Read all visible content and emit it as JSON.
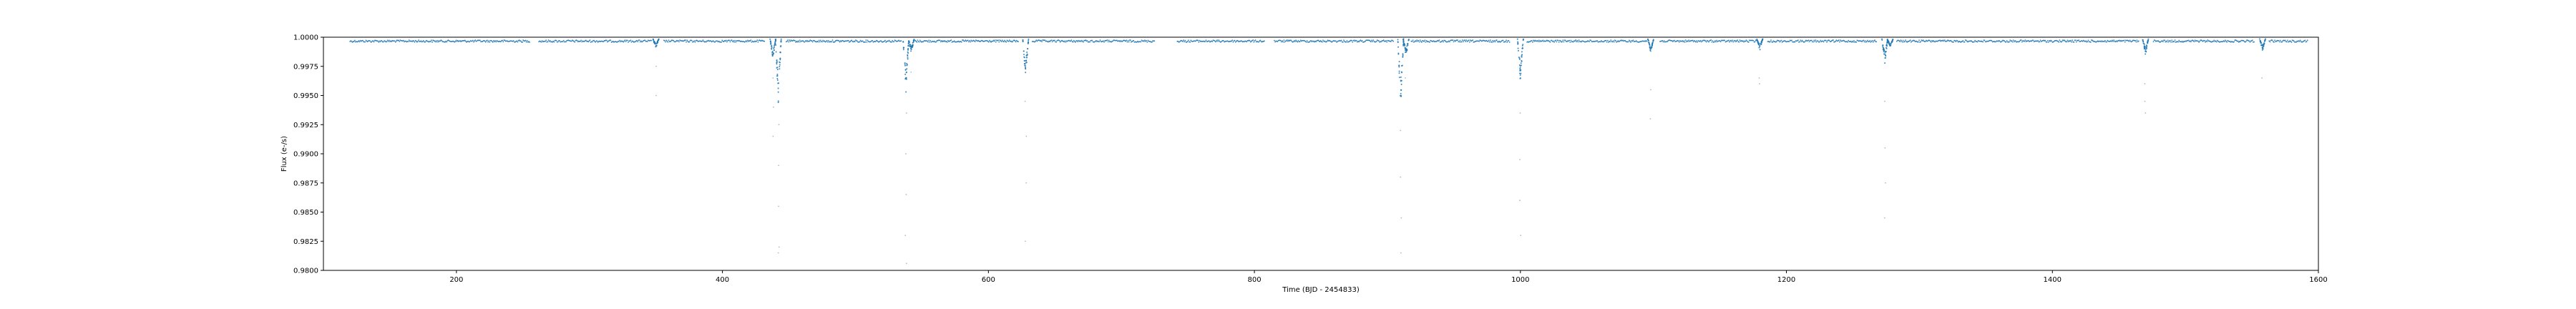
{
  "chart_data": {
    "type": "scatter",
    "title": "",
    "xlabel": "Time (BJD - 2454833)",
    "ylabel": "Flux (e-/s)",
    "xlim": [
      100,
      1600
    ],
    "ylim": [
      0.98,
      1.0
    ],
    "xticks": [
      200,
      400,
      600,
      800,
      1000,
      1200,
      1400,
      1600
    ],
    "xtick_labels": [
      "200",
      "400",
      "600",
      "800",
      "1000",
      "1200",
      "1400",
      "1600"
    ],
    "yticks": [
      0.98,
      0.9825,
      0.985,
      0.9875,
      0.99,
      0.9925,
      0.995,
      0.9975,
      1.0
    ],
    "ytick_labels": [
      "0.9800",
      "0.9825",
      "0.9850",
      "0.9875",
      "0.9900",
      "0.9925",
      "0.9950",
      "0.9975",
      "1.0000"
    ],
    "grid": false,
    "series": [
      {
        "color": "#1f77b4",
        "marker": "dot",
        "baseline_segments": [
          [
            120,
            255
          ],
          [
            262,
            347
          ],
          [
            356,
            432
          ],
          [
            448,
            535
          ],
          [
            545,
            623
          ],
          [
            633,
            725
          ],
          [
            742,
            808
          ],
          [
            815,
            905
          ],
          [
            918,
            992
          ],
          [
            1005,
            1095
          ],
          [
            1105,
            1178
          ],
          [
            1186,
            1268
          ],
          [
            1283,
            1465
          ],
          [
            1476,
            1552
          ],
          [
            1563,
            1592
          ]
        ],
        "transits": [
          {
            "t": 350,
            "depth": 0.0008,
            "outliers": [
              0.9975,
              0.995
            ]
          },
          {
            "t": 438,
            "depth": 0.0018,
            "outliers": [
              0.9965,
              0.994,
              0.9915
            ]
          },
          {
            "t": 442,
            "depth": 0.0055,
            "outliers": [
              0.9925,
              0.989,
              0.9855,
              0.982,
              0.9815
            ]
          },
          {
            "t": 538,
            "depth": 0.0048,
            "outliers": [
              0.9935,
              0.99,
              0.9865,
              0.983,
              0.9806
            ]
          },
          {
            "t": 542,
            "depth": 0.0012,
            "outliers": [
              0.997
            ]
          },
          {
            "t": 628,
            "depth": 0.0035,
            "outliers": [
              0.9945,
              0.9915,
              0.9875,
              0.9825
            ]
          },
          {
            "t": 910,
            "depth": 0.0058,
            "outliers": [
              0.992,
              0.988,
              0.9845,
              0.9815
            ]
          },
          {
            "t": 914,
            "depth": 0.0015,
            "outliers": [
              0.9965
            ]
          },
          {
            "t": 1000,
            "depth": 0.0038,
            "outliers": [
              0.9935,
              0.9895,
              0.986,
              0.983
            ]
          },
          {
            "t": 1098,
            "depth": 0.0012,
            "outliers": [
              0.9955,
              0.993
            ]
          },
          {
            "t": 1180,
            "depth": 0.001,
            "outliers": [
              0.9965,
              0.996
            ]
          },
          {
            "t": 1274,
            "depth": 0.0022,
            "outliers": [
              0.9945,
              0.9905,
              0.9875,
              0.9845
            ]
          },
          {
            "t": 1278,
            "depth": 0.0008,
            "outliers": []
          },
          {
            "t": 1470,
            "depth": 0.0014,
            "outliers": [
              0.996,
              0.9945,
              0.9935
            ]
          },
          {
            "t": 1558,
            "depth": 0.001,
            "outliers": [
              0.9965
            ]
          }
        ]
      }
    ]
  }
}
